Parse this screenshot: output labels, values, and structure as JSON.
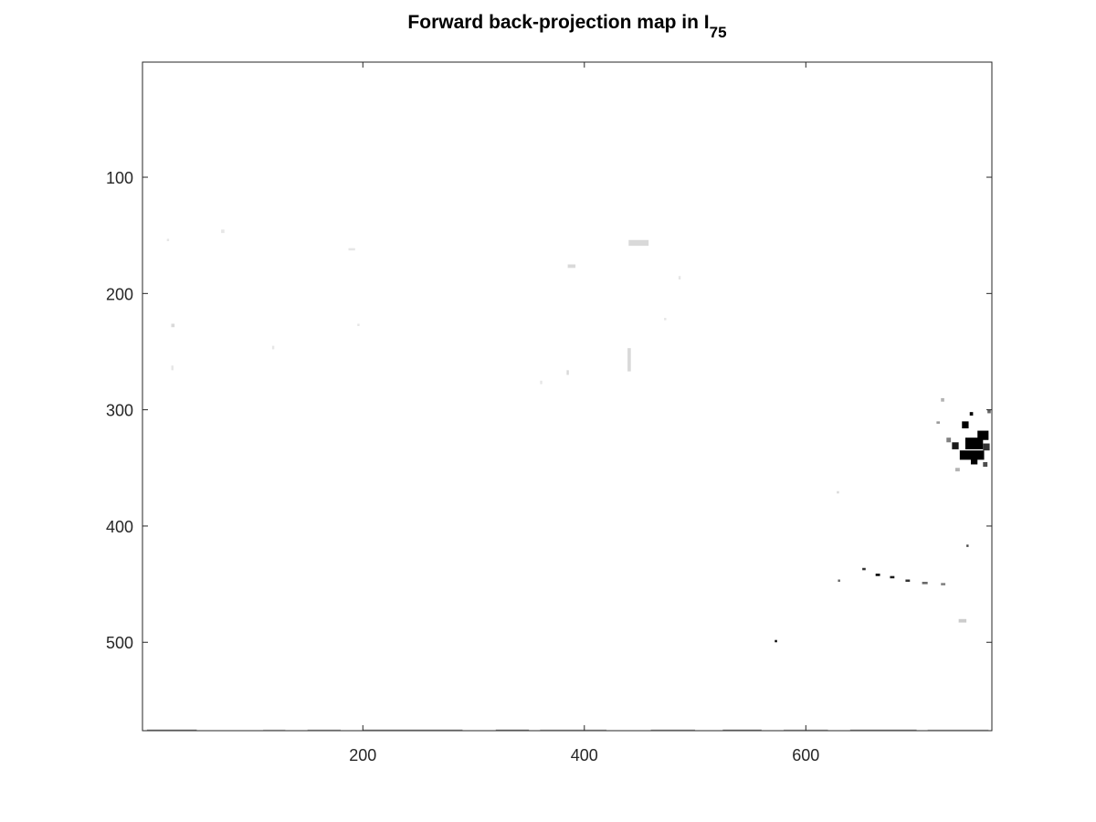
{
  "chart_data": {
    "type": "heatmap",
    "title": "Forward back-projection map  in I",
    "title_subscript": "75",
    "xlabel": "",
    "ylabel": "",
    "xlim": [
      1,
      768
    ],
    "ylim": [
      1,
      576
    ],
    "y_reversed": true,
    "grid": false,
    "x_ticks": [
      200,
      400,
      600
    ],
    "y_ticks": [
      100,
      200,
      300,
      400,
      500
    ],
    "colormap": "gray",
    "background_color": "#ffffff",
    "blobs": [
      {
        "x": 739,
        "y": 335,
        "w": 22,
        "h": 8,
        "value": 0
      },
      {
        "x": 744,
        "y": 324,
        "w": 16,
        "h": 10,
        "value": 0
      },
      {
        "x": 755,
        "y": 318,
        "w": 10,
        "h": 8,
        "value": 0
      },
      {
        "x": 741,
        "y": 310,
        "w": 6,
        "h": 6,
        "value": 0
      },
      {
        "x": 749,
        "y": 339,
        "w": 6,
        "h": 8,
        "value": 0
      },
      {
        "x": 732,
        "y": 328,
        "w": 6,
        "h": 6,
        "value": 0.1
      },
      {
        "x": 760,
        "y": 329,
        "w": 6,
        "h": 6,
        "value": 0.2
      },
      {
        "x": 727,
        "y": 324,
        "w": 4,
        "h": 4,
        "value": 0.5
      },
      {
        "x": 748,
        "y": 302,
        "w": 3,
        "h": 3,
        "value": 0
      },
      {
        "x": 760,
        "y": 345,
        "w": 4,
        "h": 4,
        "value": 0.3
      },
      {
        "x": 718,
        "y": 310,
        "w": 3,
        "h": 2,
        "value": 0.6
      },
      {
        "x": 764,
        "y": 300,
        "w": 3,
        "h": 3,
        "value": 0.4
      },
      {
        "x": 735,
        "y": 350,
        "w": 4,
        "h": 3,
        "value": 0.7
      },
      {
        "x": 722,
        "y": 290,
        "w": 3,
        "h": 3,
        "value": 0.7
      },
      {
        "x": 572,
        "y": 498,
        "w": 2,
        "h": 2,
        "value": 0
      },
      {
        "x": 651,
        "y": 436,
        "w": 3,
        "h": 2,
        "value": 0.2
      },
      {
        "x": 663,
        "y": 441,
        "w": 4,
        "h": 2,
        "value": 0
      },
      {
        "x": 676,
        "y": 443,
        "w": 4,
        "h": 2,
        "value": 0.1
      },
      {
        "x": 690,
        "y": 446,
        "w": 4,
        "h": 2,
        "value": 0.2
      },
      {
        "x": 705,
        "y": 448,
        "w": 5,
        "h": 2,
        "value": 0.4
      },
      {
        "x": 722,
        "y": 449,
        "w": 4,
        "h": 2,
        "value": 0.5
      },
      {
        "x": 629,
        "y": 446,
        "w": 2,
        "h": 2,
        "value": 0.4
      },
      {
        "x": 745,
        "y": 416,
        "w": 2,
        "h": 2,
        "value": 0.3
      },
      {
        "x": 738,
        "y": 480,
        "w": 7,
        "h": 3,
        "value": 0.8
      },
      {
        "x": 440,
        "y": 154,
        "w": 18,
        "h": 5,
        "value": 0.85
      },
      {
        "x": 439,
        "y": 247,
        "w": 3,
        "h": 20,
        "value": 0.85
      },
      {
        "x": 385,
        "y": 175,
        "w": 7,
        "h": 3,
        "value": 0.85
      },
      {
        "x": 384,
        "y": 266,
        "w": 2,
        "h": 4,
        "value": 0.85
      },
      {
        "x": 360,
        "y": 275,
        "w": 2,
        "h": 3,
        "value": 0.9
      },
      {
        "x": 485,
        "y": 185,
        "w": 2,
        "h": 3,
        "value": 0.9
      },
      {
        "x": 472,
        "y": 221,
        "w": 2,
        "h": 2,
        "value": 0.9
      },
      {
        "x": 187,
        "y": 161,
        "w": 6,
        "h": 2,
        "value": 0.9
      },
      {
        "x": 27,
        "y": 226,
        "w": 3,
        "h": 3,
        "value": 0.85
      },
      {
        "x": 27,
        "y": 262,
        "w": 2,
        "h": 4,
        "value": 0.9
      },
      {
        "x": 72,
        "y": 145,
        "w": 3,
        "h": 3,
        "value": 0.9
      },
      {
        "x": 118,
        "y": 245,
        "w": 2,
        "h": 3,
        "value": 0.9
      },
      {
        "x": 195,
        "y": 226,
        "w": 2,
        "h": 2,
        "value": 0.9
      },
      {
        "x": 23,
        "y": 153,
        "w": 2,
        "h": 2,
        "value": 0.9
      },
      {
        "x": 628,
        "y": 370,
        "w": 2,
        "h": 2,
        "value": 0.85
      }
    ],
    "bottom_strip": {
      "y": 575,
      "h": 3,
      "segments": [
        {
          "x0": 5,
          "x1": 50,
          "value": 0.55
        },
        {
          "x0": 110,
          "x1": 130,
          "value": 0.8
        },
        {
          "x0": 150,
          "x1": 180,
          "value": 0.7
        },
        {
          "x0": 200,
          "x1": 290,
          "value": 0.6
        },
        {
          "x0": 320,
          "x1": 350,
          "value": 0.55
        },
        {
          "x0": 360,
          "x1": 420,
          "value": 0.7
        },
        {
          "x0": 460,
          "x1": 500,
          "value": 0.65
        },
        {
          "x0": 525,
          "x1": 560,
          "value": 0.55
        },
        {
          "x0": 580,
          "x1": 620,
          "value": 0.7
        },
        {
          "x0": 640,
          "x1": 700,
          "value": 0.6
        },
        {
          "x0": 710,
          "x1": 765,
          "value": 0.75
        }
      ]
    }
  }
}
